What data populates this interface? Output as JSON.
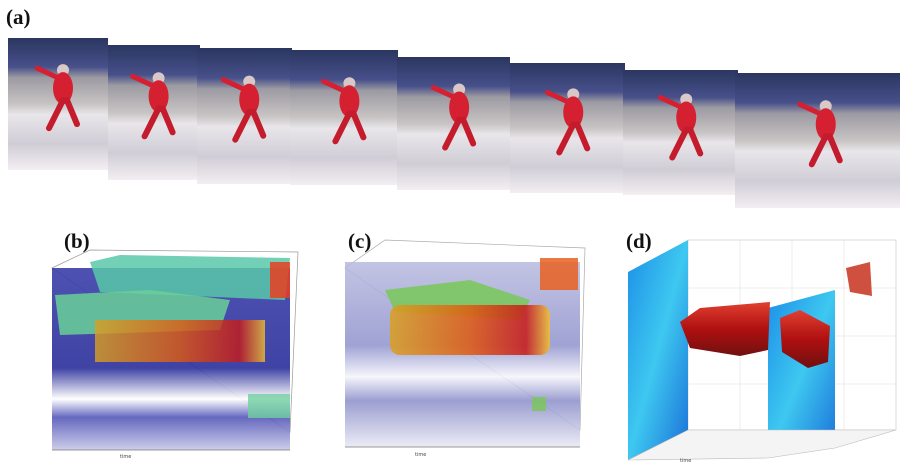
{
  "panels": [
    {
      "label": "(a)"
    },
    {
      "label": "(b)",
      "axis_label": "time"
    },
    {
      "label": "(c)",
      "axis_label": "time"
    },
    {
      "label": "(d)",
      "axis_label": "time"
    }
  ]
}
